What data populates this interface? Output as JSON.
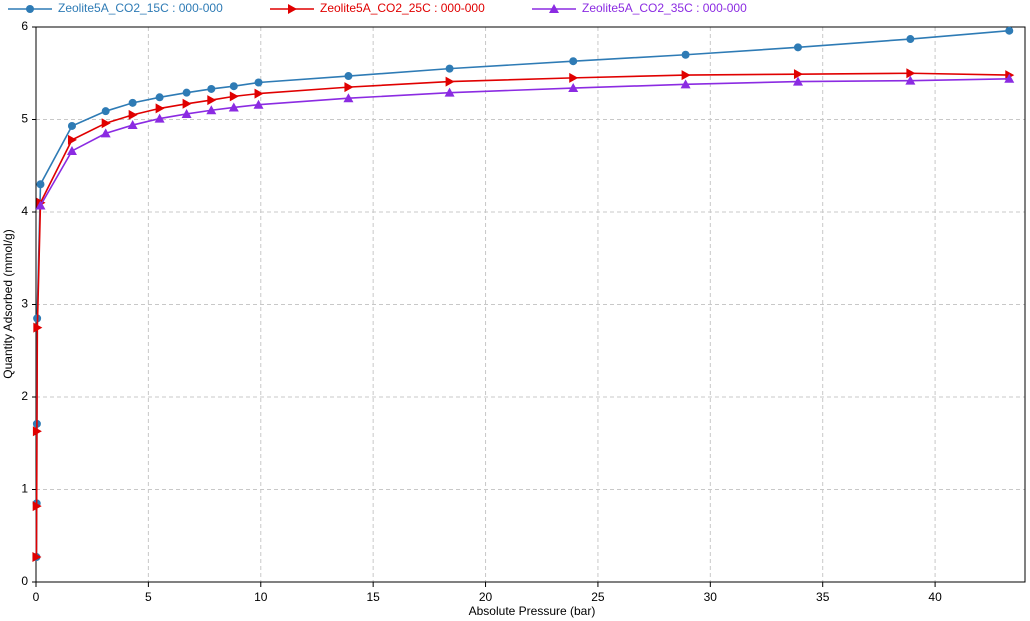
{
  "chart_data": {
    "type": "line",
    "x_label": "Absolute Pressure (bar)",
    "y_label": "Quantity Adsorbed (mmol/g)",
    "xlim": [
      0,
      44
    ],
    "xticks": [
      0,
      5,
      10,
      15,
      20,
      25,
      30,
      35,
      40
    ],
    "ylim": [
      0,
      6
    ],
    "yticks": [
      0,
      1,
      2,
      3,
      4,
      5,
      6
    ],
    "grid": true,
    "legend": "top",
    "series": [
      {
        "name": "Zeolite5A_CO2_15C : 000-000",
        "color": "#2e7bb5",
        "marker": "circle",
        "x": [
          0.02,
          0.03,
          0.04,
          0.05,
          0.2,
          1.6,
          3.1,
          4.3,
          5.5,
          6.7,
          7.8,
          8.8,
          9.9,
          13.9,
          18.4,
          23.9,
          28.9,
          33.9,
          38.9,
          43.3
        ],
        "values": [
          0.27,
          0.85,
          1.71,
          2.85,
          4.3,
          4.93,
          5.09,
          5.18,
          5.24,
          5.29,
          5.33,
          5.36,
          5.4,
          5.47,
          5.55,
          5.63,
          5.7,
          5.78,
          5.87,
          5.96
        ]
      },
      {
        "name": "Zeolite5A_CO2_25C : 000-000",
        "color": "#e00000",
        "marker": "triangle-right",
        "x": [
          0.02,
          0.03,
          0.04,
          0.06,
          0.2,
          1.6,
          3.1,
          4.3,
          5.5,
          6.7,
          7.8,
          8.8,
          9.9,
          13.9,
          18.4,
          23.9,
          28.9,
          33.9,
          38.9,
          43.3
        ],
        "values": [
          0.27,
          0.82,
          1.63,
          2.75,
          4.1,
          4.78,
          4.96,
          5.05,
          5.12,
          5.17,
          5.21,
          5.25,
          5.28,
          5.35,
          5.41,
          5.45,
          5.48,
          5.49,
          5.5,
          5.48
        ]
      },
      {
        "name": "Zeolite5A_CO2_35C : 000-000",
        "color": "#8b2be2",
        "marker": "triangle-up",
        "x": [
          0.2,
          1.6,
          3.1,
          4.3,
          5.5,
          6.7,
          7.8,
          8.8,
          9.9,
          13.9,
          18.4,
          23.9,
          28.9,
          33.9,
          38.9,
          43.3
        ],
        "values": [
          4.07,
          4.66,
          4.85,
          4.94,
          5.01,
          5.06,
          5.1,
          5.13,
          5.16,
          5.23,
          5.29,
          5.34,
          5.38,
          5.41,
          5.42,
          5.44
        ]
      }
    ]
  }
}
